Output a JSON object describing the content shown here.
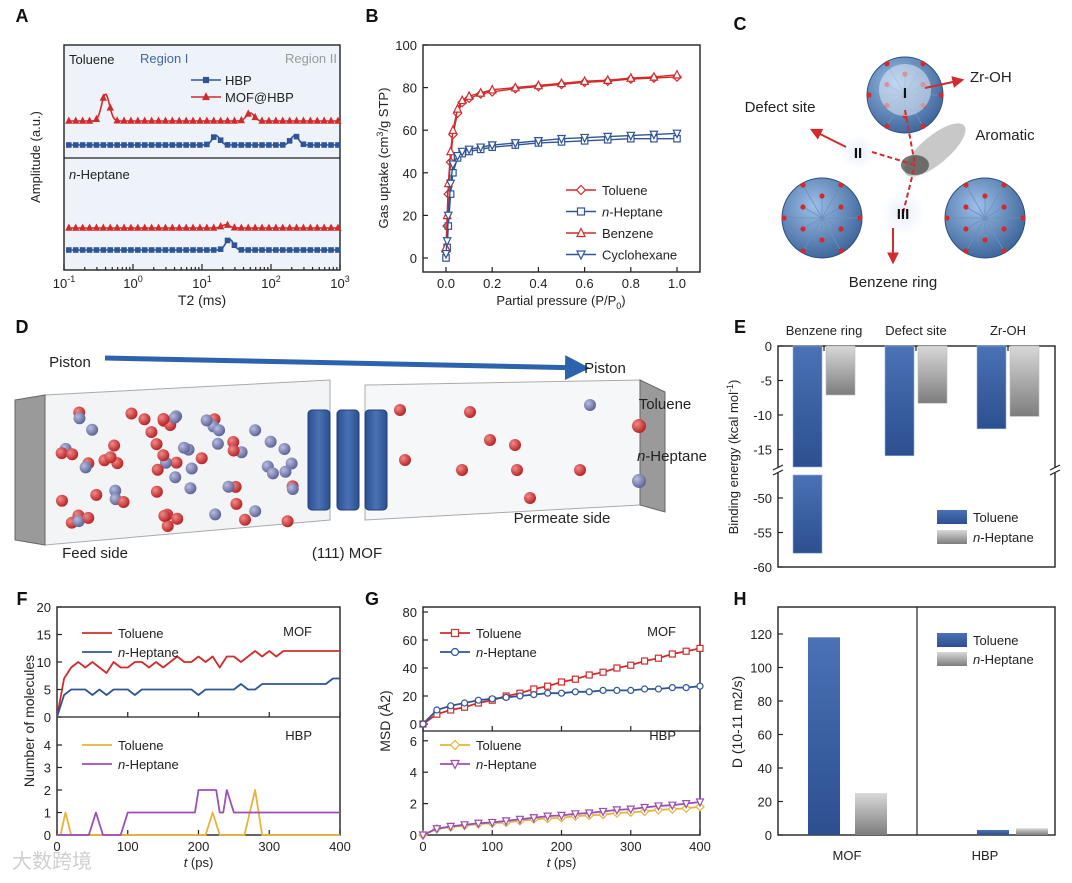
{
  "watermark": "大数跨境",
  "colors": {
    "red": "#d22b2b",
    "blue": "#2f5597",
    "yellow": "#e8b33a",
    "purple": "#9b4fb6",
    "gray": "#8c8c8c",
    "region1": "#3f66a6",
    "region2": "#9a9a9a"
  },
  "panels": {
    "A": {
      "letter": "A"
    },
    "B": {
      "letter": "B"
    },
    "C": {
      "letter": "C"
    },
    "D": {
      "letter": "D"
    },
    "E": {
      "letter": "E"
    },
    "F": {
      "letter": "F"
    },
    "G": {
      "letter": "G"
    },
    "H": {
      "letter": "H"
    }
  },
  "diagram_c": {
    "labels": {
      "zr_oh": "Zr-OH",
      "defect": "Defect site",
      "aromatic": "Aromatic",
      "benzene": "Benzene ring"
    },
    "sites": [
      "I",
      "II",
      "III"
    ]
  },
  "illustration_d": {
    "piston_left": "Piston",
    "piston_right": "Piston",
    "legend_toluene": "Toluene",
    "legend_heptane": "n-Heptane",
    "feed": "Feed side",
    "mof": "(111) MOF",
    "permeate": "Permeate side"
  },
  "chart_data": [
    {
      "id": "A",
      "type": "line",
      "xlabel": "T2 (ms)",
      "ylabel": "Amplitude (a.u.)",
      "xscale": "log",
      "xlim": [
        0.1,
        1000
      ],
      "xticks": [
        "10-1",
        "100",
        "101",
        "102",
        "103"
      ],
      "region_labels": [
        "Region I",
        "Region II"
      ],
      "legend": [
        "HBP",
        "MOF@HBP"
      ],
      "subpanels": [
        {
          "name": "Toluene",
          "series": [
            {
              "name": "MOF@HBP",
              "peaks": [
                {
                  "t2": 0.4,
                  "amp": 1.0
                },
                {
                  "t2": 50,
                  "amp": 0.3
                }
              ]
            },
            {
              "name": "HBP",
              "peaks": [
                {
                  "t2": 16,
                  "amp": 0.35
                },
                {
                  "t2": 220,
                  "amp": 0.35
                }
              ]
            }
          ]
        },
        {
          "name": "n-Heptane",
          "series": [
            {
              "name": "MOF@HBP",
              "peaks": [
                {
                  "t2": 22,
                  "amp": 0.12
                }
              ]
            },
            {
              "name": "HBP",
              "peaks": [
                {
                  "t2": 25,
                  "amp": 0.4
                }
              ]
            }
          ]
        }
      ]
    },
    {
      "id": "B",
      "type": "line",
      "xlabel": "Partial pressure (P/P0)",
      "ylabel": "Gas uptake (cm3/g STP)",
      "xlim": [
        0,
        1.0
      ],
      "ylim": [
        0,
        100
      ],
      "xticks": [
        "0.0",
        "0.2",
        "0.4",
        "0.6",
        "0.8",
        "1.0"
      ],
      "yticks": [
        "0",
        "20",
        "40",
        "60",
        "80",
        "100"
      ],
      "x": [
        0,
        0.005,
        0.01,
        0.02,
        0.03,
        0.05,
        0.07,
        0.1,
        0.15,
        0.2,
        0.3,
        0.4,
        0.5,
        0.6,
        0.7,
        0.8,
        0.9,
        1.0
      ],
      "series": [
        {
          "name": "Toluene",
          "marker": "diamond",
          "color": "#d22b2b",
          "values": [
            3,
            15,
            30,
            45,
            58,
            68,
            73,
            75,
            77,
            78,
            79.5,
            80.5,
            81.5,
            82.5,
            83,
            84,
            84.5,
            85
          ]
        },
        {
          "name": "n-Heptane",
          "marker": "square",
          "color": "#2f5597",
          "values": [
            0,
            5,
            15,
            30,
            40,
            47,
            49,
            50,
            51,
            52,
            53,
            54,
            54.5,
            55,
            55.5,
            56,
            56,
            56
          ]
        },
        {
          "name": "Benzene",
          "marker": "triangle-up",
          "color": "#d22b2b",
          "values": [
            5,
            20,
            35,
            50,
            60,
            70,
            74,
            76,
            77.5,
            79,
            80,
            81,
            82,
            83,
            83.5,
            84.5,
            85,
            86
          ]
        },
        {
          "name": "Cyclohexane",
          "marker": "triangle-down",
          "color": "#2f5597",
          "values": [
            2,
            8,
            20,
            35,
            44,
            48,
            50,
            51,
            52,
            53,
            54,
            55,
            56,
            56.5,
            57,
            57.5,
            58,
            58.5
          ]
        }
      ],
      "legend_position": "bottom-right"
    },
    {
      "id": "E",
      "type": "bar",
      "ylabel": "Binding energy (kcal mol-1)",
      "categories": [
        "Benzene ring",
        "Defect site",
        "Zr-OH"
      ],
      "yticks_upper": [
        "0",
        "-5",
        "-10",
        "-15"
      ],
      "yticks_lower": [
        "-50",
        "-55",
        "-60"
      ],
      "ylim": [
        -60,
        0
      ],
      "axis_break": [
        -17.5,
        -46
      ],
      "series": [
        {
          "name": "Toluene",
          "values": [
            -58,
            -15.9,
            -12
          ]
        },
        {
          "name": "n-Heptane",
          "values": [
            -7.1,
            -8.3,
            -10.2
          ]
        }
      ],
      "legend_position": "bottom-right"
    },
    {
      "id": "F",
      "type": "line",
      "xlabel": "t (ps)",
      "ylabel": "Number of molecules",
      "xlim": [
        0,
        400
      ],
      "xticks": [
        "0",
        "100",
        "200",
        "300",
        "400"
      ],
      "subpanels": [
        {
          "name": "MOF",
          "ylim": [
            0,
            20
          ],
          "yticks": [
            "0",
            "5",
            "10",
            "15",
            "20"
          ],
          "x_step": 10,
          "series": [
            {
              "name": "Toluene",
              "color": "#d22b2b",
              "values": [
                0,
                7,
                9,
                10,
                9,
                10,
                9,
                8,
                10,
                9,
                9,
                10,
                10,
                9,
                10,
                9,
                10,
                11,
                10,
                10,
                11,
                10,
                11,
                9,
                11,
                11,
                10,
                11,
                12,
                11,
                12,
                11,
                12,
                12,
                12,
                12,
                12,
                12,
                12,
                12,
                12
              ]
            },
            {
              "name": "n-Heptane",
              "color": "#2f5597",
              "values": [
                0,
                4,
                5,
                5,
                5,
                4,
                5,
                4,
                5,
                5,
                5,
                4,
                5,
                5,
                5,
                5,
                5,
                5,
                5,
                5,
                4,
                5,
                5,
                5,
                5,
                5,
                6,
                5,
                5,
                6,
                6,
                6,
                6,
                6,
                6,
                6,
                6,
                6,
                6,
                7,
                7
              ]
            }
          ]
        },
        {
          "name": "HBP",
          "ylim": [
            0,
            4
          ],
          "yticks": [
            "0",
            "1",
            "2",
            "3",
            "4"
          ],
          "series": [
            {
              "name": "Toluene",
              "color": "#e8b33a",
              "points": [
                [
                  0,
                  0
                ],
                [
                  5,
                  0
                ],
                [
                  12,
                  1
                ],
                [
                  20,
                  0
                ],
                [
                  210,
                  0
                ],
                [
                  220,
                  1
                ],
                [
                  230,
                  0
                ],
                [
                  265,
                  0
                ],
                [
                  280,
                  2
                ],
                [
                  290,
                  0
                ],
                [
                  400,
                  0
                ]
              ]
            },
            {
              "name": "n-Heptane",
              "color": "#9b4fb6",
              "points": [
                [
                  0,
                  0
                ],
                [
                  45,
                  0
                ],
                [
                  55,
                  1
                ],
                [
                  65,
                  0
                ],
                [
                  90,
                  0
                ],
                [
                  100,
                  1
                ],
                [
                  195,
                  1
                ],
                [
                  200,
                  2
                ],
                [
                  225,
                  2
                ],
                [
                  230,
                  1
                ],
                [
                  235,
                  1
                ],
                [
                  240,
                  2
                ],
                [
                  250,
                  1
                ],
                [
                  400,
                  1
                ]
              ]
            }
          ]
        }
      ]
    },
    {
      "id": "G",
      "type": "line",
      "xlabel": "t (ps)",
      "ylabel": "MSD (Å2)",
      "xlim": [
        0,
        400
      ],
      "xticks": [
        "0",
        "100",
        "200",
        "300",
        "400"
      ],
      "subpanels": [
        {
          "name": "MOF",
          "ylim": [
            0,
            80
          ],
          "yticks": [
            "0",
            "20",
            "40",
            "60",
            "80"
          ],
          "x_step": 20,
          "series": [
            {
              "name": "Toluene",
              "color": "#d22b2b",
              "marker": "square",
              "values": [
                0,
                7,
                10,
                12,
                15,
                17,
                20,
                22,
                25,
                27,
                30,
                32,
                35,
                37,
                40,
                42,
                45,
                47,
                50,
                52,
                54
              ]
            },
            {
              "name": "n-Heptane",
              "color": "#2f5597",
              "marker": "circle",
              "values": [
                0,
                10,
                13,
                15,
                17,
                18,
                19,
                20,
                21,
                22,
                22,
                23,
                23,
                24,
                24,
                24,
                25,
                25,
                26,
                26,
                27
              ]
            }
          ]
        },
        {
          "name": "HBP",
          "ylim": [
            0,
            6
          ],
          "yticks": [
            "0",
            "2",
            "4",
            "6"
          ],
          "x_step": 20,
          "series": [
            {
              "name": "Toluene",
              "color": "#e8b33a",
              "marker": "diamond",
              "values": [
                0,
                0.4,
                0.5,
                0.6,
                0.7,
                0.75,
                0.8,
                0.9,
                1.0,
                1.05,
                1.1,
                1.2,
                1.25,
                1.3,
                1.4,
                1.45,
                1.5,
                1.6,
                1.65,
                1.7,
                1.8
              ]
            },
            {
              "name": "n-Heptane",
              "color": "#9b4fb6",
              "marker": "triangle-down",
              "values": [
                0,
                0.4,
                0.55,
                0.65,
                0.75,
                0.8,
                0.9,
                1.0,
                1.1,
                1.2,
                1.25,
                1.35,
                1.4,
                1.5,
                1.6,
                1.65,
                1.75,
                1.85,
                1.9,
                2.0,
                2.1
              ]
            }
          ]
        }
      ]
    },
    {
      "id": "H",
      "type": "bar",
      "ylabel": "D (10-11 m2/s)",
      "ylim": [
        0,
        130
      ],
      "yticks": [
        "0",
        "20",
        "40",
        "60",
        "80",
        "100",
        "120"
      ],
      "categories": [
        "MOF",
        "HBP"
      ],
      "series": [
        {
          "name": "Toluene",
          "values": [
            118,
            3
          ]
        },
        {
          "name": "n-Heptane",
          "values": [
            25,
            4
          ]
        }
      ],
      "legend_position": "top-right"
    }
  ]
}
